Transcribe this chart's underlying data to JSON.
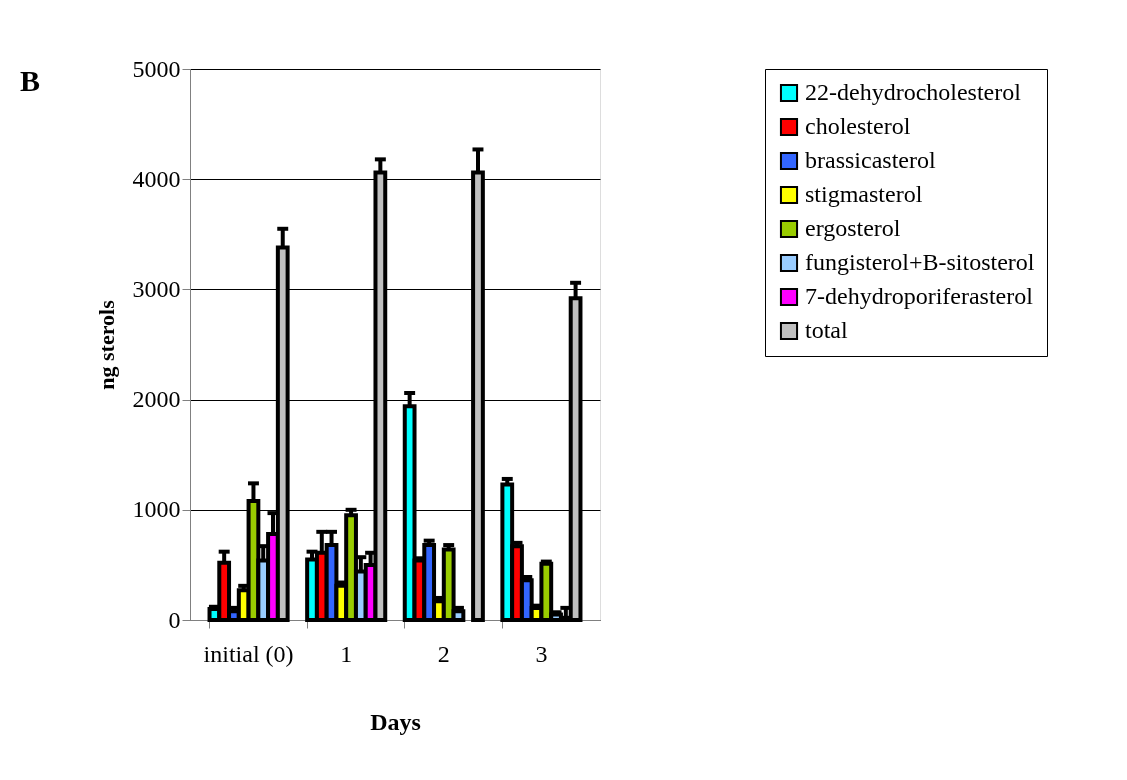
{
  "chart_data": {
    "type": "bar",
    "title": "B",
    "xlabel": "Days",
    "ylabel": "ng sterols",
    "categories": [
      "initial (0)",
      "1",
      "2",
      "3"
    ],
    "ylim": [
      0,
      5000
    ],
    "yticks": [
      0,
      1000,
      2000,
      3000,
      4000,
      5000
    ],
    "grid": "y",
    "legend": "right",
    "series": [
      {
        "name": "22-dehydrocholesterol",
        "color": "#00ffff",
        "values": [
          100,
          550,
          1940,
          1230
        ],
        "errors": [
          [
            100,
            120
          ],
          [
            550,
            620
          ],
          [
            1940,
            2060
          ],
          [
            1230,
            1280
          ]
        ]
      },
      {
        "name": "cholesterol",
        "color": "#ff0000",
        "values": [
          520,
          610,
          540,
          670
        ],
        "errors": [
          [
            520,
            620
          ],
          [
            610,
            800
          ],
          [
            540,
            560
          ],
          [
            670,
            700
          ]
        ]
      },
      {
        "name": "brassicasterol",
        "color": "#3366ff",
        "values": [
          80,
          680,
          680,
          360
        ],
        "errors": [
          [
            80,
            110
          ],
          [
            680,
            800
          ],
          [
            680,
            720
          ],
          [
            360,
            390
          ]
        ]
      },
      {
        "name": "stigmasterol",
        "color": "#ffff00",
        "values": [
          270,
          310,
          170,
          110
        ],
        "errors": [
          [
            270,
            310
          ],
          [
            310,
            340
          ],
          [
            170,
            200
          ],
          [
            110,
            130
          ]
        ]
      },
      {
        "name": "ergosterol",
        "color": "#99cc00",
        "values": [
          1080,
          950,
          640,
          510
        ],
        "errors": [
          [
            1080,
            1240
          ],
          [
            950,
            1000
          ],
          [
            640,
            680
          ],
          [
            510,
            530
          ]
        ]
      },
      {
        "name": "fungisterol+B-sitosterol",
        "color": "#99ccff",
        "values": [
          540,
          440,
          80,
          50
        ],
        "errors": [
          [
            540,
            670
          ],
          [
            440,
            570
          ],
          [
            80,
            110
          ],
          [
            50,
            70
          ]
        ]
      },
      {
        "name": "7-dehydroporiferasterol",
        "color": "#ff00ff",
        "values": [
          780,
          500,
          null,
          20
        ],
        "errors": [
          [
            780,
            970
          ],
          [
            500,
            610
          ],
          null,
          [
            20,
            110
          ]
        ]
      },
      {
        "name": "total",
        "color": "#c0c0c0",
        "values": [
          3380,
          4060,
          4060,
          2920
        ],
        "errors": [
          [
            3380,
            3550
          ],
          [
            4060,
            4180
          ],
          [
            4060,
            4270
          ],
          [
            2920,
            3060
          ]
        ]
      }
    ]
  }
}
